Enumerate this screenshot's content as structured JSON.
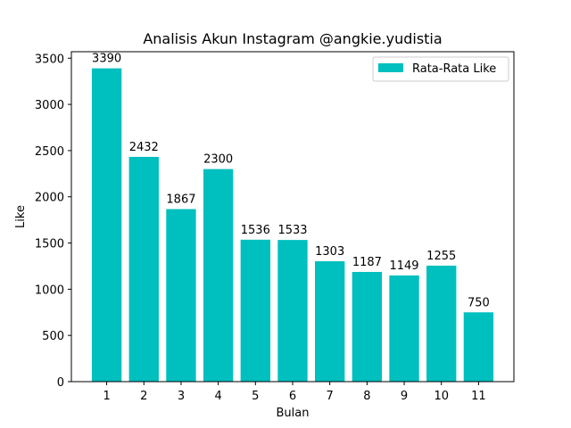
{
  "chart_data": {
    "type": "bar",
    "title": "Analisis Akun Instagram @angkie.yudistia",
    "xlabel": "Bulan",
    "ylabel": "Like",
    "categories": [
      "1",
      "2",
      "3",
      "4",
      "5",
      "6",
      "7",
      "8",
      "9",
      "10",
      "11"
    ],
    "series": [
      {
        "name": "Rata-Rata Like",
        "values": [
          3390,
          2432,
          1867,
          2300,
          1536,
          1533,
          1303,
          1187,
          1149,
          1255,
          750
        ]
      }
    ],
    "ylim": [
      0,
      3570
    ],
    "yticks": [
      0,
      500,
      1000,
      1500,
      2000,
      2500,
      3000,
      3500
    ],
    "grid": false,
    "legend": "top-right",
    "bar_color": "#00bfbf"
  }
}
